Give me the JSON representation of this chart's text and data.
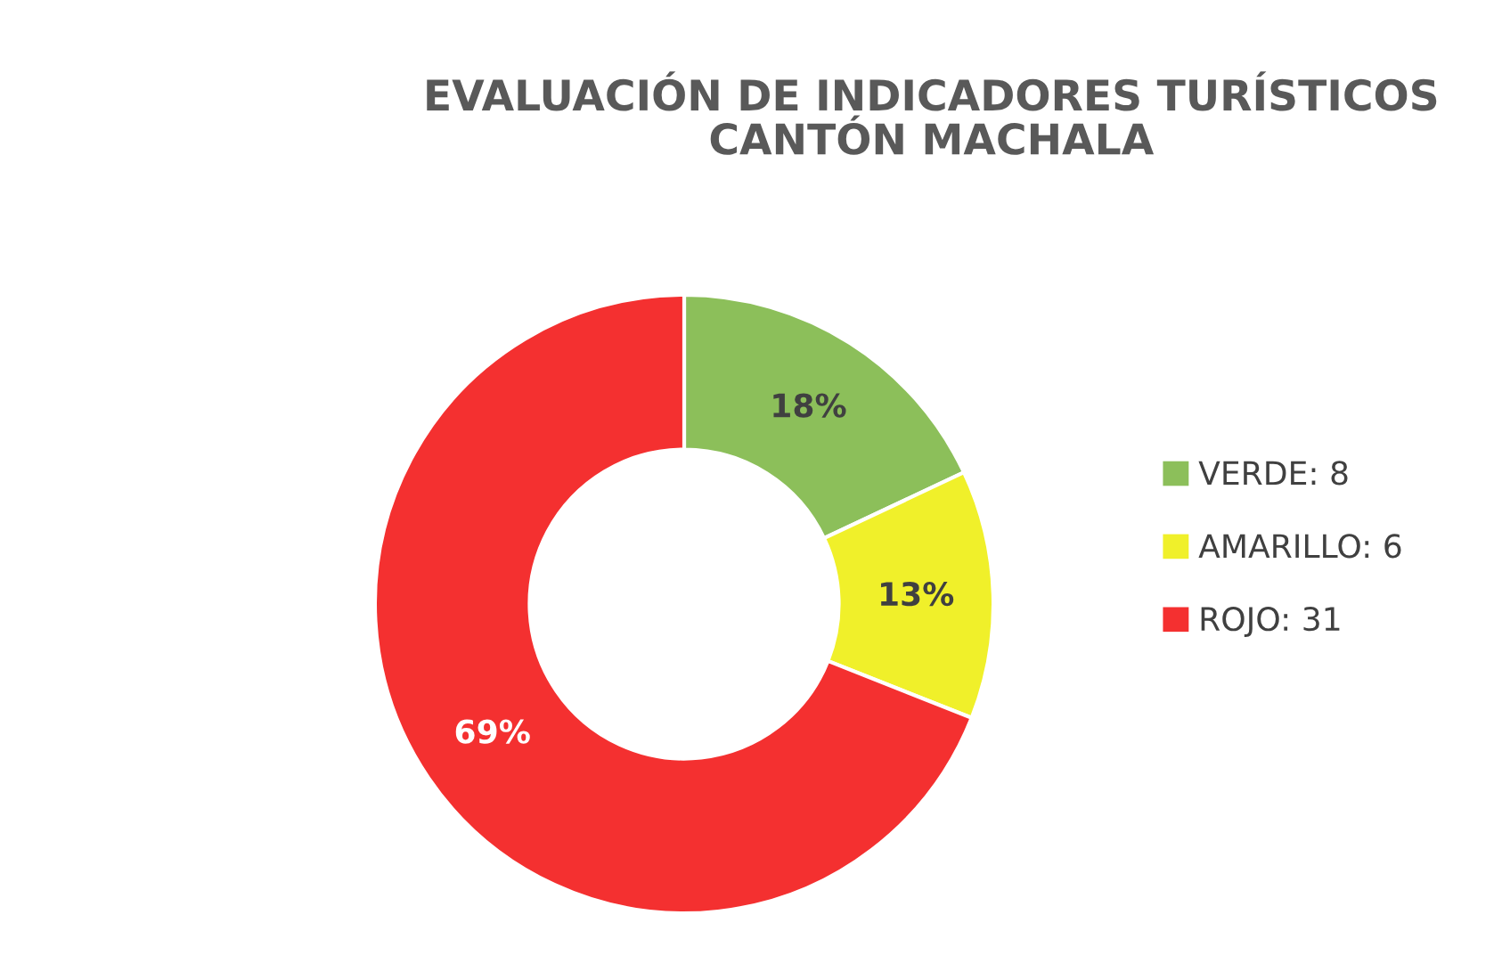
{
  "chart_data": {
    "type": "donut",
    "title": "EVALUACIÓN DE INDICADORES TURÍSTICOS\nCANTÓN MACHALA",
    "categories": [
      "VERDE: 8",
      "AMARILLO: 6",
      "ROJO: 31"
    ],
    "values": [
      18,
      13,
      69
    ],
    "colors": [
      "#8cbf5a",
      "#f0f02a",
      "#f43030"
    ],
    "value_labels": [
      "18%",
      "13%",
      "69%"
    ],
    "legend": "right"
  }
}
